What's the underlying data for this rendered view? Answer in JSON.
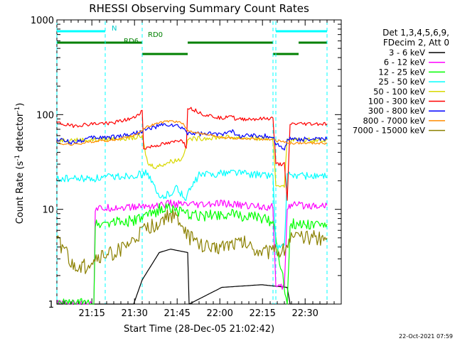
{
  "title": "RHESSI Observing Summary Count Rates",
  "xlabel": "Start Time (28-Dec-05 21:02:42)",
  "ylabel_main": "Count Rate (s",
  "ylabel_sup1": "-1",
  "ylabel_mid": " detector",
  "ylabel_sup2": "-1",
  "ylabel_end": ")",
  "footer_timestamp": "22-Oct-2021 07:59",
  "legend_header": [
    "Det 1,3,4,5,6,9,",
    "FDecim 2, Att 0"
  ],
  "annotations": {
    "n": "N",
    "rd0": "RD0",
    "rd6": "RD6"
  },
  "colors": {
    "3-6": "#000000",
    "6-12": "#ff00ff",
    "12-25": "#00ff00",
    "25-50": "#00ffff",
    "50-100": "#d8d800",
    "100-300": "#ff0000",
    "300-800": "#0000ff",
    "800-7000": "#ff8c00",
    "7000-15000": "#8b8000",
    "n_bar": "#00ffff",
    "rd_bar": "#008000"
  },
  "chart_data": {
    "type": "line",
    "title": "RHESSI Observing Summary Count Rates",
    "xlabel": "Start Time (28-Dec-05 21:02:42)",
    "ylabel": "Count Rate (s-1 detector-1)",
    "yscale": "log",
    "ylim": [
      1,
      1000
    ],
    "xlim": [
      0,
      100
    ],
    "x_tick_labels": [
      "21:15",
      "21:30",
      "21:45",
      "22:00",
      "22:15",
      "22:30"
    ],
    "x_tick_values": [
      12.3,
      27.3,
      42.3,
      57.3,
      72.3,
      87.3
    ],
    "y_tick_labels": [
      "1",
      "10",
      "100",
      "1000"
    ],
    "y_tick_values": [
      1,
      10,
      100,
      1000
    ],
    "grid": false,
    "legend_position": "right",
    "series": [
      {
        "name": "3 - 6 keV",
        "key": "3-6",
        "x": [
          0,
          27,
          30,
          36,
          40,
          46,
          46.5,
          58,
          72,
          81,
          82,
          95
        ],
        "y": [
          1,
          1,
          1.8,
          3.5,
          3.8,
          3.5,
          1,
          1.5,
          1.6,
          1.5,
          1,
          1
        ]
      },
      {
        "name": "6 - 12 keV",
        "key": "6-12",
        "x": [
          0,
          13,
          13.5,
          20,
          27,
          30,
          36,
          40,
          44,
          50,
          58,
          66,
          72,
          76,
          77,
          80,
          81,
          82,
          95
        ],
        "y": [
          1,
          1,
          10,
          10.5,
          10.5,
          10.8,
          11,
          11.5,
          11.2,
          11,
          11.5,
          11,
          10.8,
          10.5,
          1.5,
          1.5,
          10.5,
          11,
          11
        ]
      },
      {
        "name": "12 - 25 keV",
        "key": "12-25",
        "x": [
          0,
          13,
          13.5,
          20,
          27,
          32,
          36,
          40,
          44,
          50,
          58,
          66,
          72,
          76,
          81,
          82,
          95
        ],
        "y": [
          1,
          1,
          7,
          7.5,
          7.5,
          8.5,
          10,
          10.5,
          9,
          8.5,
          9,
          8.5,
          8,
          7.5,
          1,
          7,
          7
        ]
      },
      {
        "name": "25 - 50 keV",
        "key": "25-50",
        "x": [
          0,
          13,
          20,
          27,
          32,
          36,
          40,
          42,
          45,
          50,
          58,
          62,
          66,
          72,
          76,
          77,
          80,
          81,
          82,
          95
        ],
        "y": [
          21,
          21,
          22,
          23,
          24,
          13,
          15,
          17,
          13,
          23,
          24,
          25,
          24,
          23,
          23,
          4,
          4,
          22,
          23,
          22
        ]
      },
      {
        "name": "50 - 100 keV",
        "key": "50-100",
        "x": [
          0,
          13,
          20,
          27,
          30,
          32,
          35,
          40,
          44,
          46,
          58,
          66,
          72,
          76,
          77,
          80,
          81,
          82,
          95
        ],
        "y": [
          54,
          54,
          56,
          57,
          58,
          30,
          28,
          32,
          34,
          55,
          58,
          57,
          56,
          55,
          18,
          18,
          54,
          54,
          54
        ]
      },
      {
        "name": "100 - 300 keV",
        "key": "100-300",
        "x": [
          0,
          5,
          13,
          20,
          27,
          30,
          30.5,
          36,
          40,
          44,
          45.5,
          46,
          52,
          58,
          61,
          63,
          66,
          72,
          76,
          77,
          80,
          81,
          82,
          95
        ],
        "y": [
          82,
          76,
          80,
          82,
          92,
          110,
          44,
          48,
          50,
          55,
          44,
          120,
          100,
          92,
          100,
          88,
          90,
          90,
          92,
          30,
          30,
          12,
          80,
          80
        ]
      },
      {
        "name": "300 - 800 keV",
        "key": "300-800",
        "x": [
          0,
          5,
          13,
          20,
          27,
          32,
          36,
          40,
          44,
          46,
          52,
          58,
          61,
          63,
          66,
          72,
          76,
          77,
          80,
          81,
          82,
          95
        ],
        "y": [
          55,
          51,
          57,
          58,
          63,
          70,
          76,
          78,
          72,
          64,
          62,
          62,
          70,
          60,
          60,
          60,
          58,
          50,
          42,
          55,
          55,
          55
        ]
      },
      {
        "name": "800 - 7000 keV",
        "key": "800-7000",
        "x": [
          0,
          5,
          13,
          20,
          27,
          32,
          36,
          40,
          44,
          46,
          52,
          58,
          63,
          66,
          72,
          76,
          82,
          95
        ],
        "y": [
          50,
          48,
          52,
          54,
          60,
          75,
          82,
          86,
          82,
          68,
          62,
          58,
          56,
          56,
          55,
          54,
          50,
          50
        ]
      },
      {
        "name": "7000 - 15000 keV",
        "key": "7000-15000",
        "x": [
          0,
          3,
          5,
          10,
          13,
          20,
          26,
          30,
          35,
          40,
          44,
          46,
          50,
          55,
          58,
          62,
          66,
          70,
          76,
          80,
          82,
          90,
          95
        ],
        "y": [
          4.5,
          3.8,
          2.5,
          2.5,
          3.0,
          3.5,
          4.3,
          5.8,
          7.0,
          8.8,
          7.0,
          5.2,
          4.3,
          3.8,
          4.2,
          4.5,
          4.5,
          3.8,
          3.5,
          3.8,
          5.0,
          5.0,
          5.0
        ]
      }
    ],
    "bars": [
      {
        "label": "N",
        "x0": 0,
        "x1": 17,
        "level": 0.96,
        "color_key": "n_bar"
      },
      {
        "label": "N",
        "x0": 77,
        "x1": 95,
        "level": 0.96,
        "color_key": "n_bar"
      },
      {
        "label": "RD0",
        "x0": 0,
        "x1": 30,
        "level": 0.92,
        "color_key": "rd_bar"
      },
      {
        "label": "RD0",
        "x0": 46,
        "x1": 76,
        "level": 0.92,
        "color_key": "rd_bar"
      },
      {
        "label": "RD0",
        "x0": 85,
        "x1": 95,
        "level": 0.92,
        "color_key": "rd_bar"
      },
      {
        "label": "RD6",
        "x0": 30,
        "x1": 46,
        "level": 0.88,
        "color_key": "rd_bar"
      },
      {
        "label": "RD6",
        "x0": 76,
        "x1": 85,
        "level": 0.88,
        "color_key": "rd_bar"
      }
    ],
    "vlines": [
      0,
      17,
      30,
      76,
      77,
      95
    ]
  }
}
